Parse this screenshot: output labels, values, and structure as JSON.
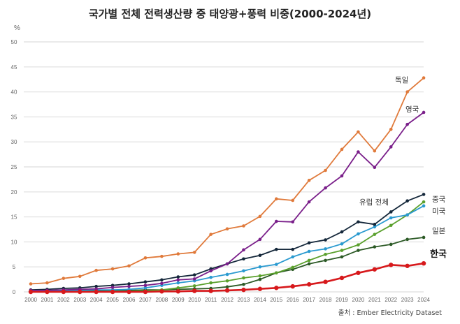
{
  "chart_data": {
    "type": "line",
    "title": "국가별 전체 전력생산량 중 태양광+풍력 비중(2000-2024년)",
    "ylabel": "%",
    "xlabel": "",
    "ylim": [
      0,
      50
    ],
    "yticks": [
      0,
      5,
      10,
      15,
      20,
      25,
      30,
      35,
      40,
      45,
      50
    ],
    "grid": true,
    "x": [
      "2000",
      "2001",
      "2002",
      "2003",
      "2004",
      "2005",
      "2006",
      "2007",
      "2008",
      "2009",
      "2010",
      "2011",
      "2012",
      "2013",
      "2014",
      "2015",
      "2016",
      "2017",
      "2018",
      "2019",
      "2020",
      "2021",
      "2022",
      "2023",
      "2024"
    ],
    "series": [
      {
        "name": "독일",
        "key": "germany",
        "color": "#e07a3b",
        "values": [
          1.6,
          1.8,
          2.7,
          3.1,
          4.3,
          4.6,
          5.2,
          6.8,
          7.1,
          7.6,
          7.9,
          11.5,
          12.6,
          13.2,
          15.1,
          18.6,
          18.3,
          22.3,
          24.3,
          28.5,
          32.0,
          28.2,
          32.5,
          40.0,
          42.8
        ]
      },
      {
        "name": "영국",
        "key": "uk",
        "color": "#7a1f8a",
        "values": [
          0.3,
          0.3,
          0.4,
          0.5,
          0.6,
          0.9,
          1.1,
          1.3,
          1.7,
          2.4,
          2.6,
          4.2,
          5.6,
          8.4,
          10.5,
          14.1,
          14.0,
          18.0,
          20.8,
          23.2,
          28.0,
          24.9,
          29.0,
          33.5,
          35.9
        ]
      },
      {
        "name": "유럽 전체",
        "key": "europe",
        "color": "#14273a",
        "values": [
          0.4,
          0.5,
          0.7,
          0.8,
          1.1,
          1.3,
          1.6,
          2.0,
          2.4,
          3.0,
          3.4,
          4.6,
          5.6,
          6.6,
          7.3,
          8.5,
          8.5,
          9.8,
          10.4,
          12.0,
          14.0,
          13.5,
          16.0,
          18.2,
          19.5
        ]
      },
      {
        "name": "미국",
        "key": "us",
        "color": "#2a9ad0",
        "values": [
          0.2,
          0.2,
          0.3,
          0.3,
          0.4,
          0.4,
          0.5,
          0.8,
          1.3,
          1.8,
          2.2,
          2.9,
          3.5,
          4.2,
          5.0,
          5.5,
          7.0,
          8.1,
          8.6,
          9.6,
          11.6,
          13.0,
          14.8,
          15.4,
          17.2
        ]
      },
      {
        "name": "중국",
        "key": "china",
        "color": "#5aa02c",
        "values": [
          0.0,
          0.0,
          0.0,
          0.0,
          0.0,
          0.1,
          0.1,
          0.2,
          0.4,
          0.8,
          1.2,
          1.8,
          2.2,
          2.8,
          3.2,
          3.8,
          4.9,
          6.3,
          7.5,
          8.3,
          9.4,
          11.5,
          13.3,
          15.4,
          18.0
        ]
      },
      {
        "name": "일본",
        "key": "japan",
        "color": "#2c5a26",
        "values": [
          0.1,
          0.1,
          0.2,
          0.2,
          0.2,
          0.3,
          0.3,
          0.4,
          0.4,
          0.5,
          0.6,
          0.7,
          1.0,
          1.5,
          2.5,
          3.8,
          4.5,
          5.6,
          6.3,
          7.0,
          8.3,
          9.0,
          9.5,
          10.5,
          10.9
        ]
      },
      {
        "name": "한국",
        "key": "korea",
        "color": "#d7191c",
        "values": [
          0.0,
          0.0,
          0.0,
          0.0,
          0.0,
          0.0,
          0.0,
          0.0,
          0.1,
          0.1,
          0.2,
          0.2,
          0.3,
          0.4,
          0.6,
          0.8,
          1.1,
          1.5,
          2.0,
          2.8,
          3.8,
          4.5,
          5.4,
          5.2,
          5.7
        ]
      }
    ],
    "annotations": [
      {
        "series": "germany",
        "text": "독일"
      },
      {
        "series": "uk",
        "text": "영국"
      },
      {
        "series": "europe",
        "text": "유럽 전체"
      },
      {
        "series": "china",
        "text": "중국"
      },
      {
        "series": "us",
        "text": "미국"
      },
      {
        "series": "japan",
        "text": "일본"
      },
      {
        "series": "korea",
        "text": "한국"
      }
    ],
    "source": "출처 : Ember Electricity Dataset"
  }
}
